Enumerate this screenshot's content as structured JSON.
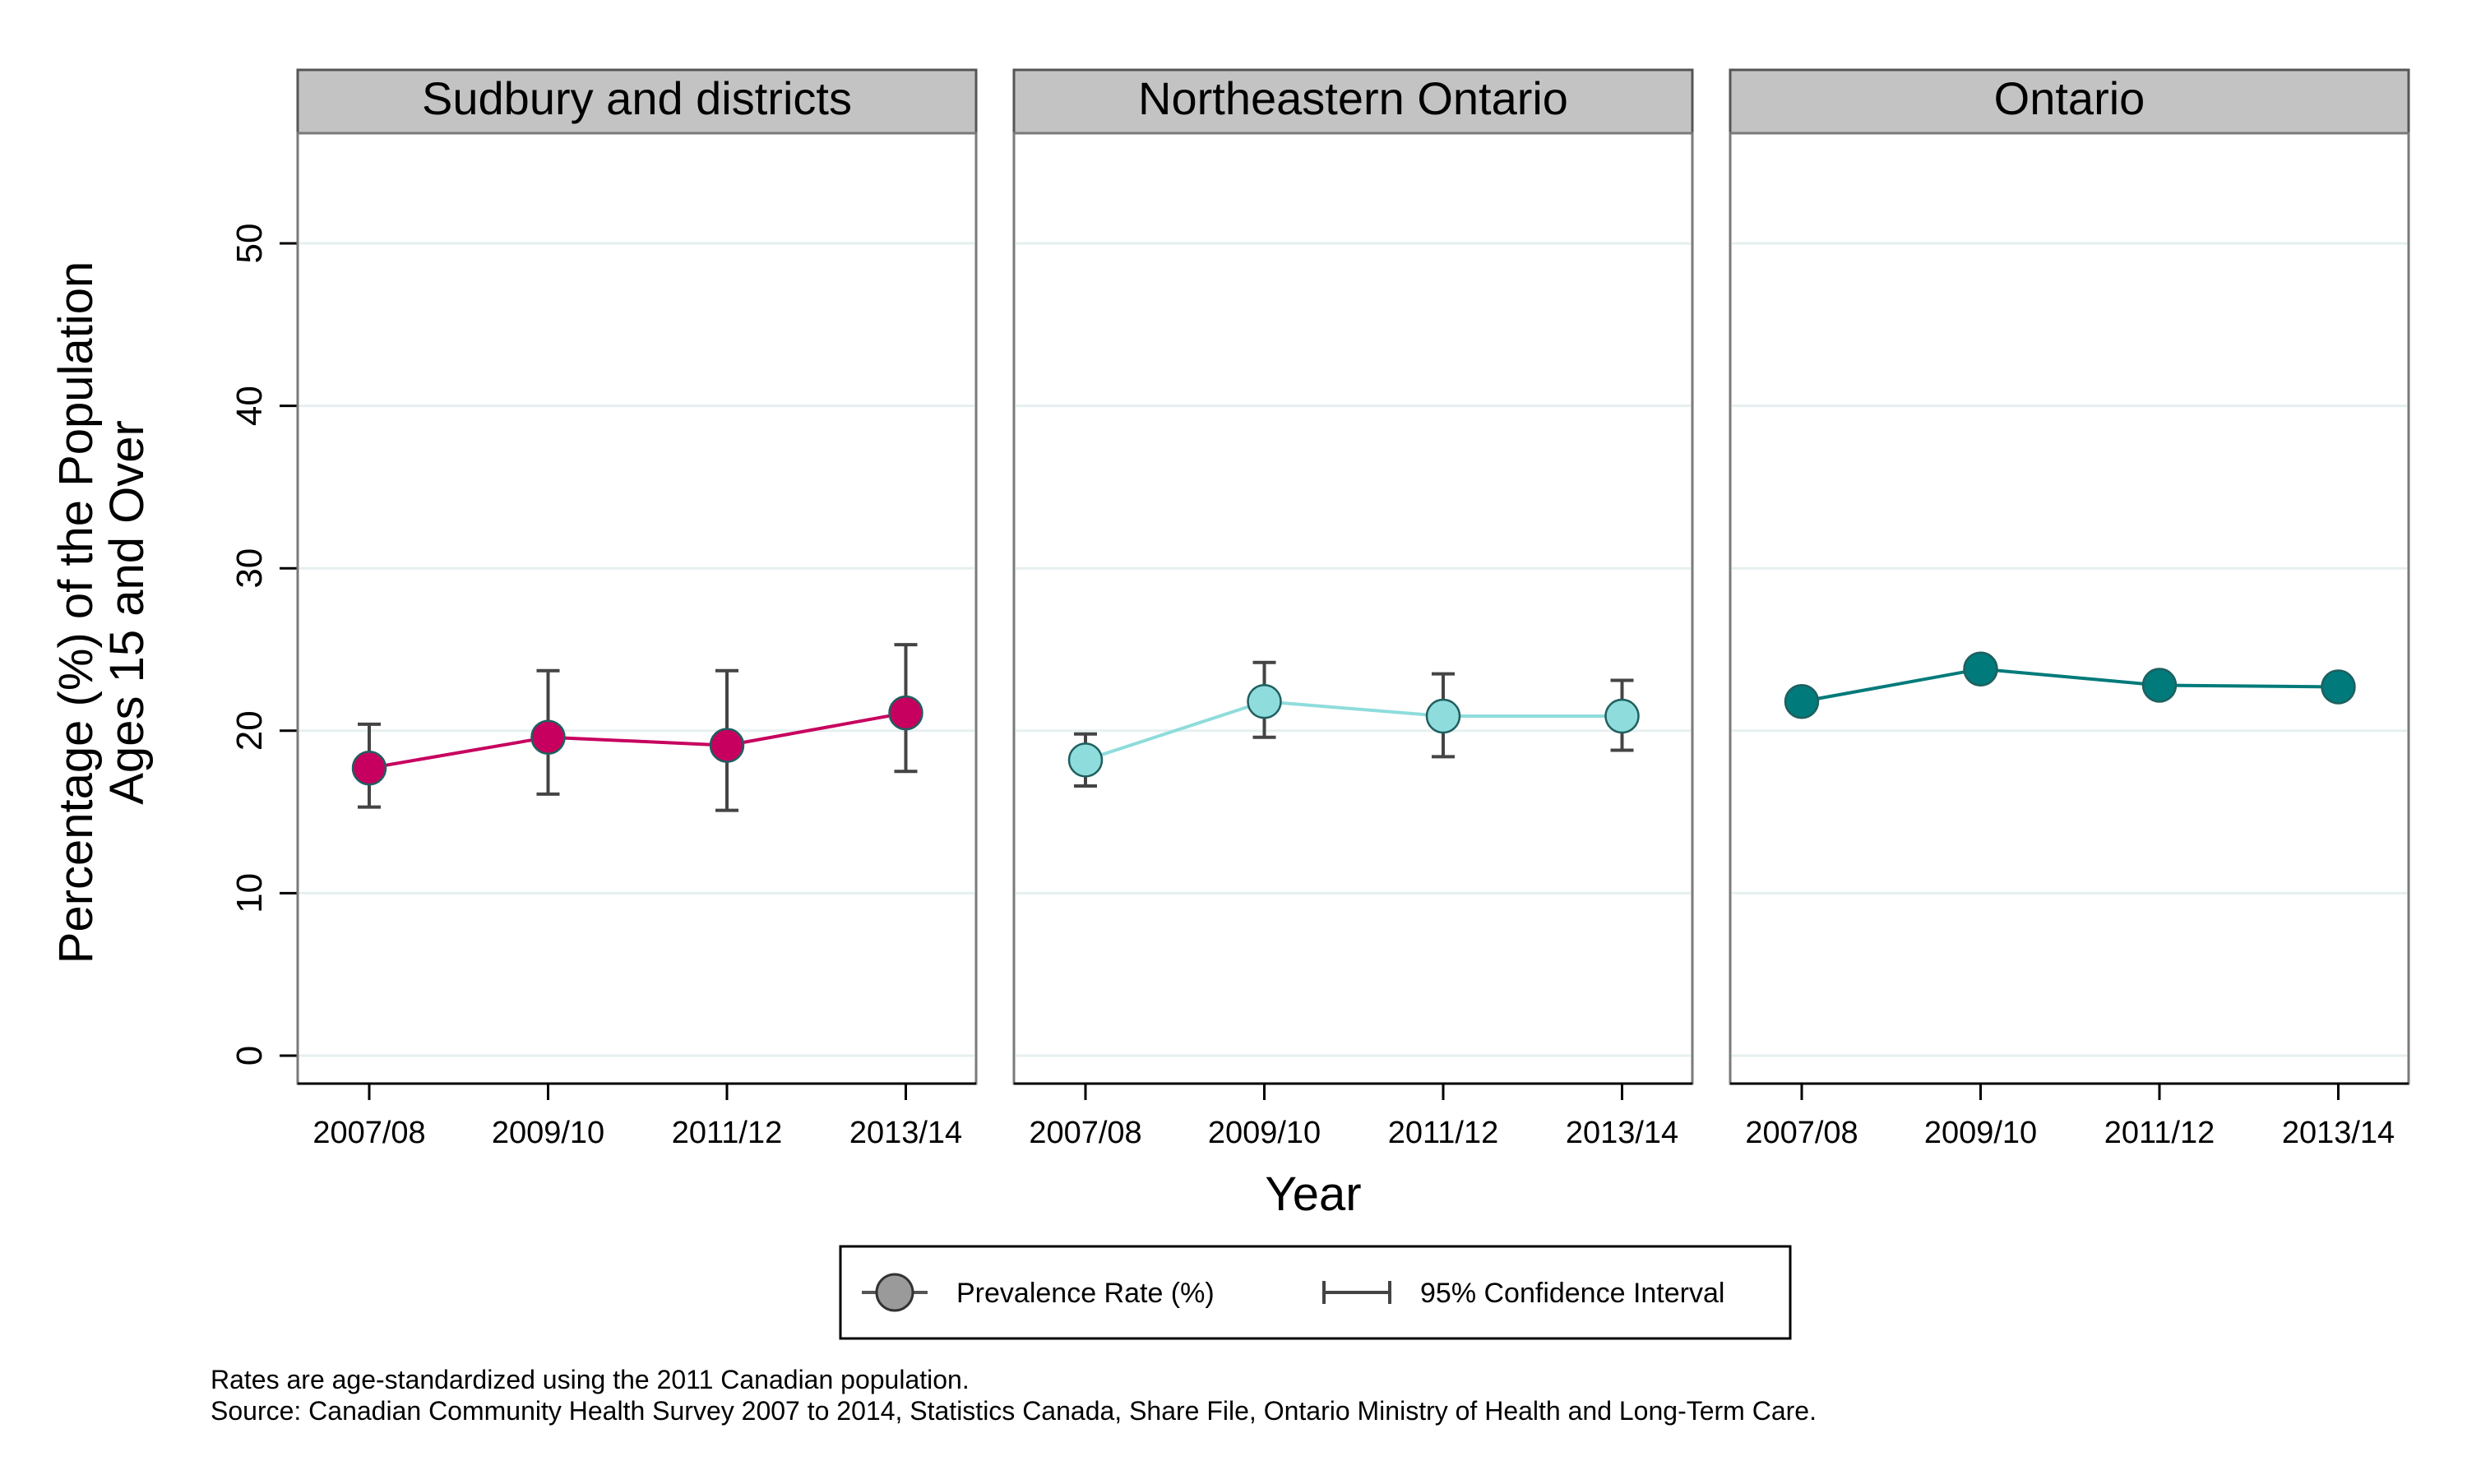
{
  "chart_data": {
    "type": "line",
    "ylabel_lines": [
      "Percentage (%) of the Population",
      "Ages 15 and Over"
    ],
    "xlabel": "Year",
    "ylim": [
      0,
      55
    ],
    "yticks": [
      0,
      10,
      20,
      30,
      40,
      50
    ],
    "categories": [
      "2007/08",
      "2009/10",
      "2011/12",
      "2013/14"
    ],
    "grid": true,
    "panels": [
      {
        "title": "Sudbury and districts",
        "color": "#c7005f",
        "values": [
          17.7,
          19.6,
          19.1,
          21.1
        ],
        "ci_low": [
          15.3,
          16.1,
          15.1,
          17.5
        ],
        "ci_high": [
          20.4,
          23.7,
          23.7,
          25.3
        ]
      },
      {
        "title": "Northeastern Ontario",
        "color": "#8fdcdc",
        "values": [
          18.2,
          21.8,
          20.9,
          20.9
        ],
        "ci_low": [
          16.6,
          19.6,
          18.4,
          18.8
        ],
        "ci_high": [
          19.8,
          24.2,
          23.5,
          23.1
        ]
      },
      {
        "title": "Ontario",
        "color": "#007a7a",
        "values": [
          21.8,
          23.8,
          22.8,
          22.7
        ],
        "ci_low": null,
        "ci_high": null
      }
    ],
    "legend": {
      "position": "bottom",
      "items": [
        "Prevalence Rate (%)",
        "95% Confidence Interval"
      ]
    }
  },
  "notes": [
    "Rates are age-standardized using the 2011 Canadian population.",
    "Source: Canadian Community Health Survey 2007 to 2014, Statistics Canada, Share File, Ontario Ministry of Health and Long-Term Care."
  ]
}
